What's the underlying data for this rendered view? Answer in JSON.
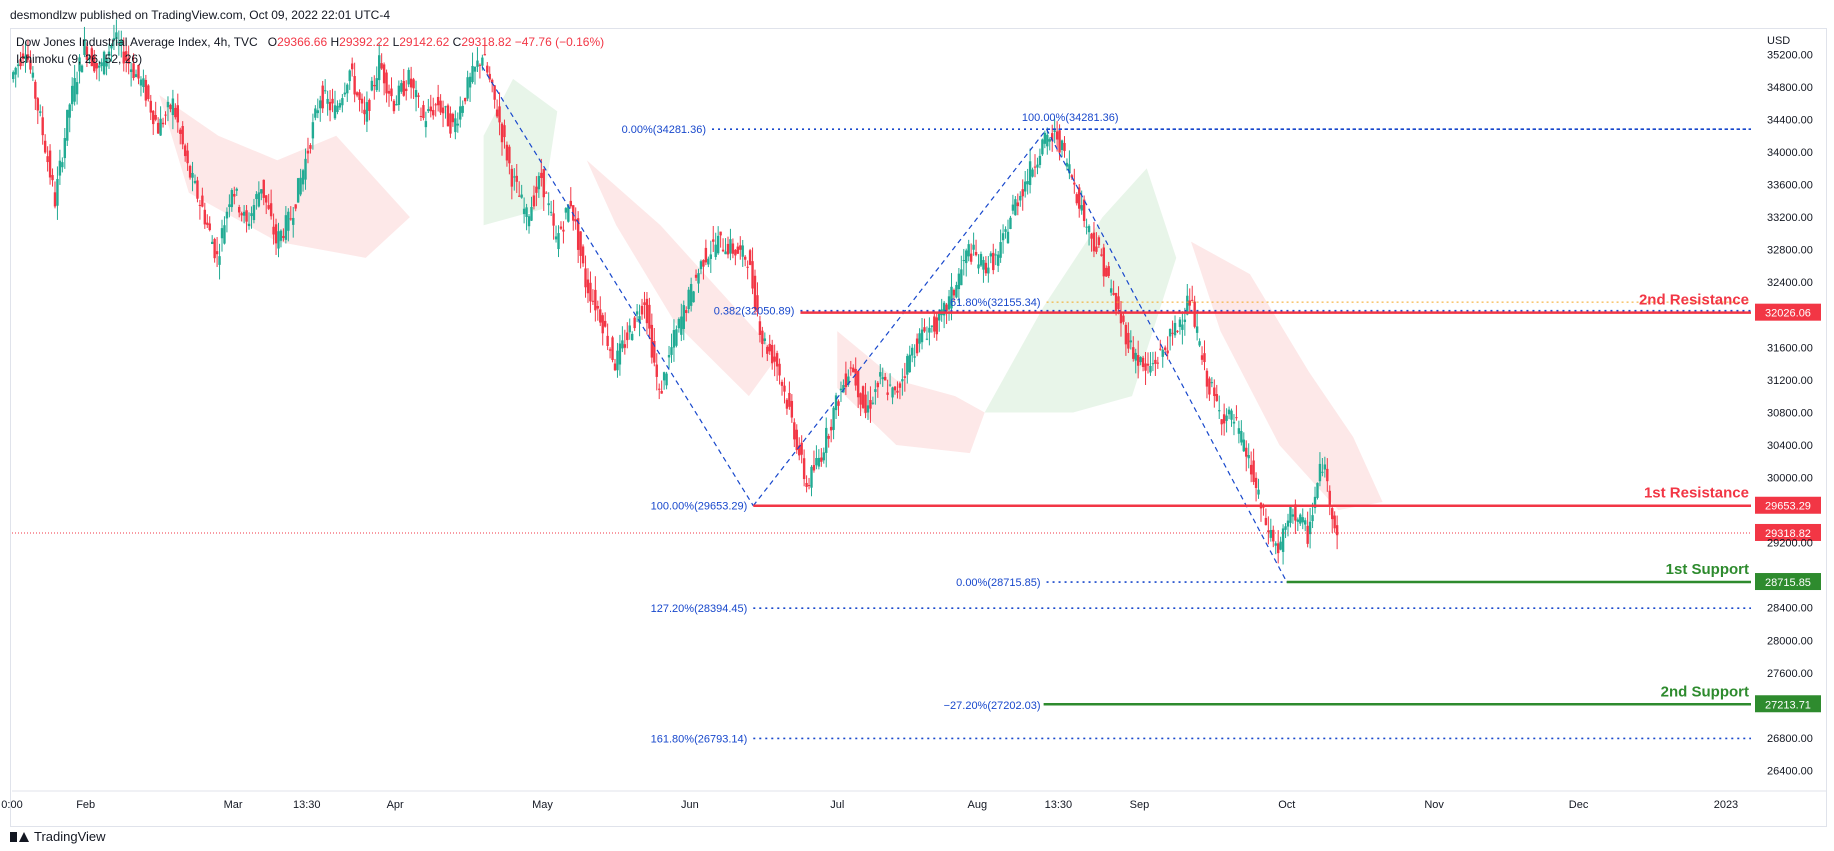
{
  "header": {
    "publisher": "desmondlzw published on TradingView.com, Oct 09, 2022 22:01 UTC-4"
  },
  "legend": {
    "symbol": "Dow Jones Industrial Average Index, 4h, TVC",
    "open_label": "O",
    "open": "29366.66",
    "high_label": "H",
    "high": "29392.22",
    "low_label": "L",
    "low": "29142.62",
    "close_label": "C",
    "close": "29318.82",
    "change": "−47.76 (−0.16%)",
    "indicator": "Ichimoku (9, 26, 52, 26)"
  },
  "footer": {
    "brand": "TradingView"
  },
  "colors": {
    "up": "#22ab94",
    "down": "#f23645",
    "resistance": "#f23645",
    "support": "#2e8b2e",
    "fib": "#1848cc",
    "fib_orange": "#f5a623",
    "cloud_green": "#e8f5e9",
    "cloud_red": "#fde8e8"
  },
  "chart_data": {
    "type": "candlestick",
    "currency": "USD",
    "yaxis": {
      "range": [
        26160,
        35500
      ],
      "ticks": [
        "35200.00",
        "34800.00",
        "34400.00",
        "34000.00",
        "33600.00",
        "33200.00",
        "32800.00",
        "32400.00",
        "31600.00",
        "31200.00",
        "30800.00",
        "30400.00",
        "30000.00",
        "29200.00",
        "28400.00",
        "28000.00",
        "27600.00",
        "26800.00",
        "26400.00"
      ]
    },
    "xaxis": {
      "ticks": [
        {
          "label": "0:00",
          "t": 0
        },
        {
          "label": "Feb",
          "t": 5
        },
        {
          "label": "Mar",
          "t": 15
        },
        {
          "label": "13:30",
          "t": 20
        },
        {
          "label": "Apr",
          "t": 26
        },
        {
          "label": "May",
          "t": 36
        },
        {
          "label": "Jun",
          "t": 46
        },
        {
          "label": "Jul",
          "t": 56
        },
        {
          "label": "Aug",
          "t": 65.5
        },
        {
          "label": "13:30",
          "t": 71
        },
        {
          "label": "Sep",
          "t": 76.5
        },
        {
          "label": "Oct",
          "t": 86.5
        },
        {
          "label": "Nov",
          "t": 96.5
        },
        {
          "label": "Dec",
          "t": 106.3
        },
        {
          "label": "2023",
          "t": 116.3
        }
      ],
      "range": [
        0,
        118
      ]
    },
    "price_path": [
      [
        0,
        34900
      ],
      [
        1,
        35300
      ],
      [
        2,
        34400
      ],
      [
        3,
        33400
      ],
      [
        4,
        34600
      ],
      [
        5,
        35300
      ],
      [
        6,
        35000
      ],
      [
        7,
        35400
      ],
      [
        8,
        35100
      ],
      [
        9,
        34800
      ],
      [
        10,
        34300
      ],
      [
        11,
        34600
      ],
      [
        12,
        33800
      ],
      [
        13,
        33300
      ],
      [
        14,
        32700
      ],
      [
        15,
        33600
      ],
      [
        16,
        33100
      ],
      [
        17,
        33600
      ],
      [
        18,
        32900
      ],
      [
        19,
        33200
      ],
      [
        20,
        33900
      ],
      [
        21,
        34700
      ],
      [
        22,
        34500
      ],
      [
        23,
        35000
      ],
      [
        24,
        34400
      ],
      [
        25,
        35100
      ],
      [
        26,
        34600
      ],
      [
        27,
        34900
      ],
      [
        28,
        34400
      ],
      [
        29,
        34600
      ],
      [
        30,
        34300
      ],
      [
        31,
        34800
      ],
      [
        32,
        35200
      ],
      [
        33,
        34500
      ],
      [
        34,
        33700
      ],
      [
        35,
        33200
      ],
      [
        36,
        33700
      ],
      [
        37,
        32900
      ],
      [
        38,
        33400
      ],
      [
        39,
        32400
      ],
      [
        40,
        32000
      ],
      [
        41,
        31400
      ],
      [
        42,
        31800
      ],
      [
        43,
        32200
      ],
      [
        44,
        31000
      ],
      [
        45,
        31700
      ],
      [
        46,
        32200
      ],
      [
        47,
        32700
      ],
      [
        48,
        32900
      ],
      [
        49,
        32800
      ],
      [
        50,
        32700
      ],
      [
        51,
        31700
      ],
      [
        52,
        31400
      ],
      [
        53,
        30700
      ],
      [
        54,
        29900
      ],
      [
        55,
        30300
      ],
      [
        56,
        30900
      ],
      [
        57,
        31400
      ],
      [
        58,
        30800
      ],
      [
        59,
        31200
      ],
      [
        60,
        31000
      ],
      [
        61,
        31500
      ],
      [
        62,
        31800
      ],
      [
        63,
        31900
      ],
      [
        64,
        32300
      ],
      [
        65,
        32800
      ],
      [
        66,
        32600
      ],
      [
        67,
        32700
      ],
      [
        68,
        33300
      ],
      [
        69,
        33700
      ],
      [
        70,
        34100
      ],
      [
        71,
        34200
      ],
      [
        72,
        33700
      ],
      [
        73,
        33100
      ],
      [
        74,
        32700
      ],
      [
        75,
        32100
      ],
      [
        76,
        31600
      ],
      [
        77,
        31300
      ],
      [
        78,
        31500
      ],
      [
        79,
        31800
      ],
      [
        80,
        32200
      ],
      [
        81,
        31300
      ],
      [
        82,
        30800
      ],
      [
        83,
        30700
      ],
      [
        84,
        30200
      ],
      [
        85,
        29500
      ],
      [
        86,
        29100
      ],
      [
        87,
        29600
      ],
      [
        88,
        29300
      ],
      [
        89,
        30200
      ],
      [
        90,
        29300
      ]
    ],
    "last_price": 29318.82,
    "levels": [
      {
        "name": "2nd Resistance",
        "value": 32026.06,
        "tag": "32026.06",
        "kind": "resistance",
        "t_start": 53.5
      },
      {
        "name": "1st Resistance",
        "value": 29653.29,
        "tag": "29653.29",
        "kind": "resistance",
        "t_start": 50.3
      },
      {
        "name": "1st Support",
        "value": 28715.85,
        "tag": "28715.85",
        "kind": "support",
        "t_start": 86.5
      },
      {
        "name": "2nd Support",
        "value": 27213.71,
        "tag": "27213.71",
        "kind": "support",
        "t_start": 70
      }
    ],
    "fib_levels": [
      {
        "label": "0.00%(34281.36)",
        "value": 34281.36,
        "t_start": 47.5
      },
      {
        "label": "100.00%(34281.36)",
        "value": 34281.36,
        "t_start": 70.2,
        "label_above": true
      },
      {
        "label": "0.382(32050.89)",
        "value": 32050.89,
        "t_start": 53.5
      },
      {
        "label": "61.80%(32155.34)",
        "value": 32155.34,
        "t_start": 70.2,
        "orange": true
      },
      {
        "label": "100.00%(29653.29)",
        "value": 29653.29,
        "t_start": 50.3,
        "no_line": true
      },
      {
        "label": "0.00%(28715.85)",
        "value": 28715.85,
        "t_start": 70.2
      },
      {
        "label": "127.20%(28394.45)",
        "value": 28394.45,
        "t_start": 50.3
      },
      {
        "label": "−27.20%(27202.03)",
        "value": 27202.03,
        "t_start": 70.2,
        "no_line": true
      },
      {
        "label": "161.80%(26793.14)",
        "value": 26793.14,
        "t_start": 50.3
      }
    ],
    "diagonals": [
      [
        [
          31.9,
          35050
        ],
        [
          50.3,
          29653.29
        ]
      ],
      [
        [
          50.3,
          29653.29
        ],
        [
          70.2,
          34281.36
        ]
      ],
      [
        [
          70.2,
          34281.36
        ],
        [
          86.5,
          28715.85
        ]
      ]
    ],
    "cloud_green": [
      [
        [
          32,
          34200
        ],
        [
          34,
          34900
        ],
        [
          37,
          34500
        ],
        [
          36,
          33300
        ],
        [
          32,
          33100
        ]
      ],
      [
        [
          66,
          30800
        ],
        [
          70,
          32100
        ],
        [
          74,
          33200
        ],
        [
          77,
          33800
        ],
        [
          79,
          32700
        ],
        [
          76,
          31000
        ],
        [
          72,
          30800
        ]
      ]
    ],
    "cloud_red": [
      [
        [
          10,
          34700
        ],
        [
          14,
          34200
        ],
        [
          18,
          33900
        ],
        [
          22,
          34200
        ],
        [
          27,
          33200
        ],
        [
          24,
          32700
        ],
        [
          18,
          32900
        ],
        [
          12,
          33500
        ]
      ],
      [
        [
          39,
          33900
        ],
        [
          44,
          33100
        ],
        [
          48,
          32300
        ],
        [
          52,
          31500
        ],
        [
          50,
          31000
        ],
        [
          45,
          31900
        ],
        [
          41,
          33100
        ]
      ],
      [
        [
          56,
          31800
        ],
        [
          60,
          31200
        ],
        [
          64,
          31000
        ],
        [
          66,
          30800
        ],
        [
          65,
          30300
        ],
        [
          60,
          30400
        ],
        [
          56,
          31100
        ]
      ],
      [
        [
          80,
          32900
        ],
        [
          84,
          32500
        ],
        [
          88,
          31300
        ],
        [
          91,
          30500
        ],
        [
          93,
          29700
        ],
        [
          90,
          29600
        ],
        [
          86,
          30400
        ],
        [
          82,
          31800
        ]
      ]
    ]
  }
}
